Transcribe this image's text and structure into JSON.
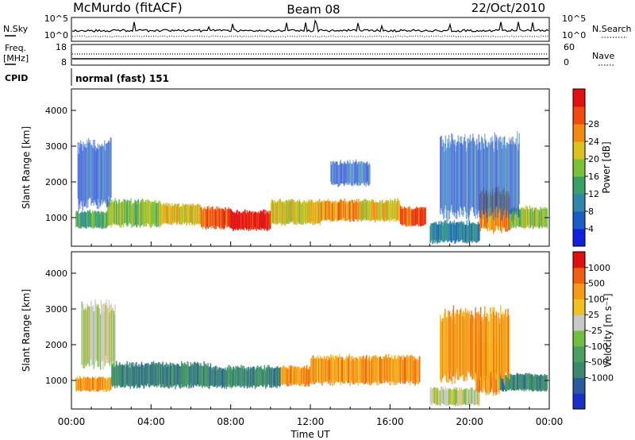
{
  "header": {
    "station": "McMurdo (fitACF)",
    "beam": "Beam 08",
    "date": "22/Oct/2010"
  },
  "noise_panel": {
    "left_label": "N.Sky",
    "right_label": "N.Search",
    "ticks_left": [
      "10^5",
      "10^0"
    ],
    "ticks_right": [
      "10^5",
      "10^0"
    ],
    "right_line_style": "dotted"
  },
  "freq_panel": {
    "left_label_1": "Freq.",
    "left_label_2": "[MHz]",
    "right_label": "Nave",
    "ticks_left": [
      "18",
      "8"
    ],
    "ticks_right": [
      "60",
      "0"
    ],
    "right_line_style": "dotted"
  },
  "cpid": {
    "label": "CPID",
    "value": "normal (fast) 151"
  },
  "chart_data": [
    {
      "type": "heatmap",
      "name": "power",
      "ylabel": "Slant Range [km]",
      "ylim": [
        200,
        4600
      ],
      "yticks": [
        "1000",
        "2000",
        "3000",
        "4000"
      ],
      "ytick_values": [
        1000,
        2000,
        3000,
        4000
      ],
      "xlim": [
        0,
        24
      ],
      "colorbar_label": "Power [dB]",
      "colorbar_ticks": [
        "4",
        "8",
        "12",
        "16",
        "20",
        "24",
        "28"
      ],
      "colorbar_colors": [
        "#1020e0",
        "#1a5cc8",
        "#2f86a8",
        "#3aa06a",
        "#7cc238",
        "#dcc020",
        "#f28a12",
        "#f04a10",
        "#e21010"
      ],
      "grid": false,
      "features": [
        {
          "t0": 0.2,
          "t1": 1.8,
          "r0": 700,
          "r1": 1200,
          "level": 3
        },
        {
          "t0": 1.8,
          "t1": 4.5,
          "r0": 750,
          "r1": 1500,
          "level": 4
        },
        {
          "t0": 4.5,
          "t1": 6.5,
          "r0": 800,
          "r1": 1400,
          "level": 5
        },
        {
          "t0": 6.5,
          "t1": 8.0,
          "r0": 700,
          "r1": 1300,
          "level": 7
        },
        {
          "t0": 8.0,
          "t1": 10.0,
          "r0": 650,
          "r1": 1200,
          "level": 8
        },
        {
          "t0": 10.0,
          "t1": 12.5,
          "r0": 800,
          "r1": 1500,
          "level": 5
        },
        {
          "t0": 12.5,
          "t1": 14.5,
          "r0": 900,
          "r1": 1500,
          "level": 6
        },
        {
          "t0": 14.5,
          "t1": 16.5,
          "r0": 900,
          "r1": 1500,
          "level": 5
        },
        {
          "t0": 16.5,
          "t1": 17.8,
          "r0": 750,
          "r1": 1300,
          "level": 7
        },
        {
          "t0": 18.0,
          "t1": 20.5,
          "r0": 300,
          "r1": 900,
          "level": 2
        },
        {
          "t0": 20.5,
          "t1": 22.0,
          "r0": 600,
          "r1": 1800,
          "level": 6
        },
        {
          "t0": 22.0,
          "t1": 23.9,
          "r0": 700,
          "r1": 1300,
          "level": 4
        },
        {
          "t0": 0.3,
          "t1": 2.0,
          "r0": 1300,
          "r1": 3200,
          "level": 1
        },
        {
          "t0": 13.0,
          "t1": 15.0,
          "r0": 1900,
          "r1": 2600,
          "level": 1
        },
        {
          "t0": 18.5,
          "t1": 22.5,
          "r0": 1000,
          "r1": 3300,
          "level": 1
        }
      ]
    },
    {
      "type": "heatmap",
      "name": "velocity",
      "ylabel": "Slant Range [km]",
      "ylim": [
        200,
        4600
      ],
      "yticks": [
        "1000",
        "2000",
        "3000",
        "4000"
      ],
      "ytick_values": [
        1000,
        2000,
        3000,
        4000
      ],
      "xlim": [
        0,
        24
      ],
      "xlabel": "Time UT",
      "xticks": [
        "00:00",
        "04:00",
        "08:00",
        "12:00",
        "16:00",
        "20:00",
        "00:00"
      ],
      "xtick_values": [
        0,
        4,
        8,
        12,
        16,
        20,
        24
      ],
      "colorbar_label": "Velocity [m s⁻¹]",
      "colorbar_ticks": [
        "1000",
        "500",
        "100",
        "25",
        "-25",
        "-100",
        "-500",
        "-1000"
      ],
      "colorbar_colors": [
        "#1830c8",
        "#2a5aa0",
        "#3a8a6a",
        "#4aa060",
        "#70c040",
        "#c8c8c8",
        "#f2c020",
        "#f59a18",
        "#f06010",
        "#e01010"
      ],
      "grid": false,
      "features": [
        {
          "t0": 0.2,
          "t1": 2.0,
          "r0": 700,
          "r1": 1100,
          "level": 7
        },
        {
          "t0": 2.0,
          "t1": 7.0,
          "r0": 800,
          "r1": 1500,
          "level": 2
        },
        {
          "t0": 7.0,
          "t1": 10.5,
          "r0": 800,
          "r1": 1400,
          "level": 2
        },
        {
          "t0": 10.5,
          "t1": 12.0,
          "r0": 850,
          "r1": 1400,
          "level": 7
        },
        {
          "t0": 12.0,
          "t1": 17.5,
          "r0": 900,
          "r1": 1700,
          "level": 7
        },
        {
          "t0": 18.0,
          "t1": 20.5,
          "r0": 300,
          "r1": 800,
          "level": 5
        },
        {
          "t0": 20.3,
          "t1": 21.5,
          "r0": 600,
          "r1": 2200,
          "level": 7
        },
        {
          "t0": 21.5,
          "t1": 23.9,
          "r0": 700,
          "r1": 1200,
          "level": 2
        },
        {
          "t0": 0.5,
          "t1": 2.2,
          "r0": 1400,
          "r1": 3200,
          "level": 5
        },
        {
          "t0": 18.5,
          "t1": 22.0,
          "r0": 1000,
          "r1": 3000,
          "level": 7
        }
      ]
    }
  ]
}
